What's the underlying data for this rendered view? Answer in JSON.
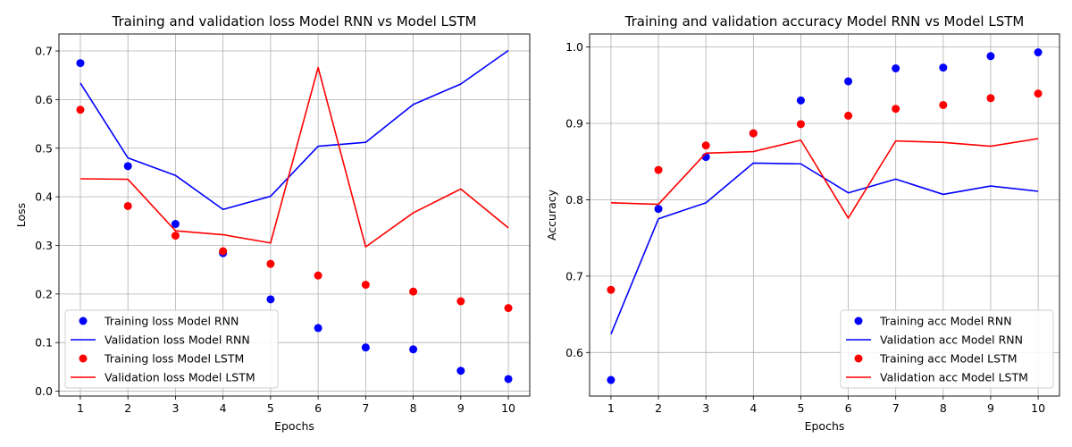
{
  "chart_data": [
    {
      "type": "line",
      "title": "Training and validation loss Model RNN vs Model LSTM",
      "xlabel": "Epochs",
      "ylabel": "Loss",
      "x": [
        1,
        2,
        3,
        4,
        5,
        6,
        7,
        8,
        9,
        10
      ],
      "xlim": [
        0.55,
        10.45
      ],
      "ylim": [
        -0.01,
        0.735
      ],
      "yticks": [
        0.0,
        0.1,
        0.2,
        0.3,
        0.4,
        0.5,
        0.6,
        0.7
      ],
      "ytick_labels": [
        "0.0",
        "0.1",
        "0.2",
        "0.3",
        "0.4",
        "0.5",
        "0.6",
        "0.7"
      ],
      "xtick_labels": [
        "1",
        "2",
        "3",
        "4",
        "5",
        "6",
        "7",
        "8",
        "9",
        "10"
      ],
      "grid": true,
      "legend_position": "bottom-left",
      "series": [
        {
          "name": "Training loss Model RNN",
          "style": "points",
          "color": "#0000ff",
          "values": [
            0.675,
            0.463,
            0.344,
            0.284,
            0.189,
            0.13,
            0.09,
            0.086,
            0.042,
            0.025
          ]
        },
        {
          "name": "Validation loss Model RNN",
          "style": "line",
          "color": "#0000ff",
          "values": [
            0.634,
            0.48,
            0.444,
            0.374,
            0.401,
            0.504,
            0.512,
            0.59,
            0.632,
            0.701
          ]
        },
        {
          "name": "Training loss Model LSTM",
          "style": "points",
          "color": "#ff0000",
          "values": [
            0.579,
            0.381,
            0.32,
            0.288,
            0.262,
            0.238,
            0.219,
            0.205,
            0.185,
            0.171
          ]
        },
        {
          "name": "Validation loss Model LSTM",
          "style": "line",
          "color": "#ff0000",
          "values": [
            0.437,
            0.436,
            0.33,
            0.322,
            0.305,
            0.666,
            0.297,
            0.367,
            0.416,
            0.336
          ]
        }
      ]
    },
    {
      "type": "line",
      "title": "Training and validation accuracy Model RNN vs Model LSTM",
      "xlabel": "Epochs",
      "ylabel": "Accuracy",
      "x": [
        1,
        2,
        3,
        4,
        5,
        6,
        7,
        8,
        9,
        10
      ],
      "xlim": [
        0.55,
        10.45
      ],
      "ylim": [
        0.543,
        1.017
      ],
      "yticks": [
        0.6,
        0.7,
        0.8,
        0.9,
        1.0
      ],
      "ytick_labels": [
        "0.6",
        "0.7",
        "0.8",
        "0.9",
        "1.0"
      ],
      "xtick_labels": [
        "1",
        "2",
        "3",
        "4",
        "5",
        "6",
        "7",
        "8",
        "9",
        "10"
      ],
      "grid": true,
      "legend_position": "bottom-right",
      "series": [
        {
          "name": "Training acc Model RNN",
          "style": "points",
          "color": "#0000ff",
          "values": [
            0.564,
            0.788,
            0.856,
            0.887,
            0.93,
            0.955,
            0.972,
            0.973,
            0.988,
            0.993
          ]
        },
        {
          "name": "Validation acc Model RNN",
          "style": "line",
          "color": "#0000ff",
          "values": [
            0.624,
            0.775,
            0.796,
            0.848,
            0.847,
            0.809,
            0.827,
            0.807,
            0.818,
            0.811
          ]
        },
        {
          "name": "Training acc Model LSTM",
          "style": "points",
          "color": "#ff0000",
          "values": [
            0.682,
            0.839,
            0.871,
            0.887,
            0.899,
            0.91,
            0.919,
            0.924,
            0.933,
            0.939
          ]
        },
        {
          "name": "Validation acc Model LSTM",
          "style": "line",
          "color": "#ff0000",
          "values": [
            0.796,
            0.794,
            0.861,
            0.863,
            0.878,
            0.776,
            0.877,
            0.875,
            0.87,
            0.88
          ]
        }
      ]
    }
  ]
}
